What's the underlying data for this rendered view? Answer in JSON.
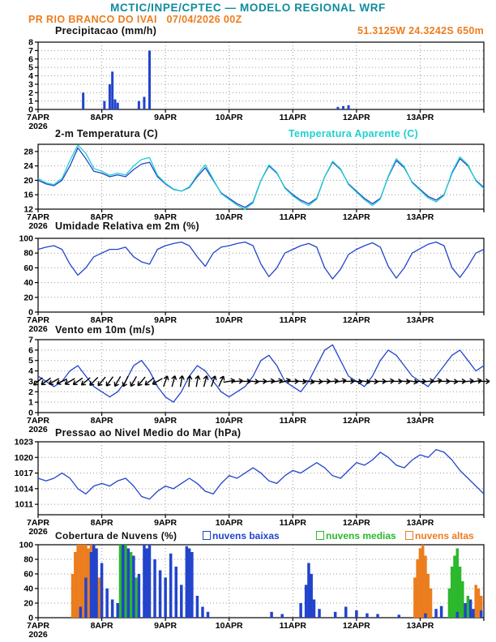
{
  "header": {
    "title": "MCTIC/INPE/CPTEC — MODELO REGIONAL WRF",
    "subtitle": "PR RIO BRANCO DO IVAI   07/04/2026 00Z",
    "location": "51.3125W 24.3242S 650m"
  },
  "colors": {
    "header_teal": "#0e8c9e",
    "accent_orange": "#ec7d1e",
    "line_blue": "#2244cc",
    "line_cyan": "#20cfcf",
    "bar_green": "#2cb82c",
    "axis_black": "#000000",
    "grid_gray": "#999999"
  },
  "x_axis": {
    "day_labels": [
      "7APR",
      "8APR",
      "9APR",
      "10APR",
      "11APR",
      "12APR",
      "13APR"
    ],
    "year_label": "2026",
    "total_hours": 168,
    "step_hours": 3
  },
  "chart_data": [
    {
      "id": "precip",
      "type": "bar",
      "title": "Precipitacao (mm/h)",
      "ylim": [
        0,
        8
      ],
      "yticks": [
        0,
        1,
        2,
        3,
        4,
        5,
        6,
        7,
        8
      ],
      "color": "#2244cc",
      "points": [
        [
          17,
          2.0
        ],
        [
          25,
          1.0
        ],
        [
          27,
          3.0
        ],
        [
          28,
          4.5
        ],
        [
          29,
          1.2
        ],
        [
          30,
          0.8
        ],
        [
          38,
          1.0
        ],
        [
          40,
          1.5
        ],
        [
          42,
          7.0
        ],
        [
          113,
          0.3
        ],
        [
          115,
          0.4
        ],
        [
          117,
          0.5
        ]
      ]
    },
    {
      "id": "temp",
      "type": "line",
      "title": "2-m Temperatura (C)",
      "secondary_title": "Temperatura Aparente (C)",
      "ylim": [
        12,
        30
      ],
      "yticks": [
        12,
        16,
        20,
        24,
        28
      ],
      "series": [
        {
          "name": "2-m Temperatura (C)",
          "color": "#2244cc",
          "values": [
            20,
            19,
            18.5,
            20,
            24,
            29,
            26,
            22.5,
            22,
            21,
            21.5,
            21,
            23,
            24.5,
            25,
            21,
            19,
            17.5,
            17,
            18,
            21,
            23.5,
            20,
            16.5,
            15,
            13.5,
            12.5,
            14,
            20,
            24,
            22,
            18,
            16,
            14.5,
            13.5,
            15,
            21,
            25,
            23,
            19,
            17,
            15,
            13.5,
            15,
            21,
            25.5,
            23.5,
            19.5,
            17.5,
            15.5,
            14.5,
            16,
            22,
            26,
            24,
            20,
            18
          ]
        },
        {
          "name": "Temperatura Aparente (C)",
          "color": "#20cfcf",
          "values": [
            20.5,
            19.3,
            18.8,
            20.5,
            25.5,
            29.8,
            27.5,
            23.3,
            22.5,
            21.4,
            22,
            21.5,
            24,
            25.8,
            26.3,
            21.4,
            19.2,
            17.6,
            17,
            18.2,
            21.5,
            24.3,
            20.3,
            16.3,
            14.7,
            13.1,
            12,
            13.7,
            20,
            24.3,
            22.2,
            17.8,
            15.7,
            14.1,
            13,
            14.8,
            21,
            25.3,
            23.2,
            18.8,
            16.7,
            14.6,
            13,
            14.8,
            21.2,
            26,
            23.8,
            19.3,
            17.2,
            15.1,
            14,
            15.8,
            22.3,
            26.5,
            24.3,
            19.8,
            17.7
          ]
        }
      ]
    },
    {
      "id": "rh",
      "type": "line",
      "title": "Umidade Relativa em 2m (%)",
      "ylim": [
        0,
        100
      ],
      "yticks": [
        0,
        20,
        40,
        60,
        80,
        100
      ],
      "series": [
        {
          "name": "Umidade Relativa",
          "color": "#2244cc",
          "values": [
            85,
            88,
            90,
            85,
            65,
            50,
            60,
            75,
            80,
            85,
            85,
            88,
            75,
            68,
            65,
            85,
            90,
            93,
            95,
            90,
            75,
            62,
            80,
            88,
            90,
            93,
            95,
            90,
            65,
            48,
            60,
            80,
            85,
            90,
            93,
            88,
            60,
            45,
            58,
            78,
            85,
            90,
            94,
            88,
            62,
            46,
            60,
            80,
            86,
            92,
            95,
            90,
            60,
            47,
            62,
            80,
            85
          ]
        }
      ]
    },
    {
      "id": "wind",
      "type": "line",
      "title": "Vento em 10m (m/s)",
      "ylim": [
        0,
        7
      ],
      "yticks": [
        0,
        1,
        2,
        3,
        4,
        5,
        6,
        7
      ],
      "series": [
        {
          "name": "Vento",
          "color": "#2244cc",
          "values": [
            3.5,
            3,
            2.5,
            3,
            4,
            4.5,
            3.5,
            2.5,
            2,
            1.5,
            2,
            3,
            4.5,
            5,
            4,
            2.5,
            1.5,
            1,
            2,
            3.5,
            4.5,
            4,
            3,
            2,
            1.5,
            2,
            2.5,
            3.5,
            5,
            5.5,
            4.5,
            3,
            2.5,
            2,
            3,
            4.5,
            6,
            6.5,
            5,
            3.5,
            3,
            2.5,
            3.5,
            5,
            6,
            5.5,
            4.5,
            3.5,
            3,
            2.5,
            3.5,
            4.5,
            5.5,
            6,
            5,
            4,
            4.5
          ]
        }
      ],
      "barbs": {
        "step_hours": 3,
        "level": 3,
        "color": "#000000",
        "angles_deg": [
          140,
          145,
          150,
          155,
          150,
          145,
          140,
          135,
          130,
          125,
          120,
          115,
          120,
          130,
          140,
          150,
          290,
          285,
          280,
          275,
          280,
          285,
          290,
          295,
          350,
          355,
          0,
          5,
          0,
          355,
          350,
          345,
          0,
          5,
          10,
          5,
          0,
          355,
          350,
          0,
          5,
          10,
          5,
          0,
          355,
          0,
          5,
          10,
          0,
          355,
          350,
          0,
          5,
          0,
          355,
          350,
          0
        ]
      }
    },
    {
      "id": "pres",
      "type": "line",
      "title": "Pressao ao Nivel Medio do Mar (hPa)",
      "ylim": [
        1009,
        1023
      ],
      "yticks": [
        1011,
        1014,
        1017,
        1020,
        1023
      ],
      "series": [
        {
          "name": "Pressao",
          "color": "#2244cc",
          "values": [
            1016,
            1015.5,
            1016,
            1017,
            1016,
            1014,
            1013,
            1014.5,
            1015,
            1014.5,
            1015.5,
            1016,
            1014.5,
            1012.5,
            1012,
            1013.5,
            1014.5,
            1014,
            1015,
            1016,
            1015,
            1013.5,
            1013,
            1015,
            1016.5,
            1016,
            1017,
            1018,
            1017,
            1015.5,
            1015,
            1016.5,
            1017.5,
            1017,
            1018,
            1019,
            1018,
            1016.5,
            1016,
            1017.5,
            1019,
            1018.5,
            1019.5,
            1021,
            1020,
            1018.5,
            1018,
            1019.5,
            1020.5,
            1020,
            1021.5,
            1021,
            1019.5,
            1017.5,
            1016,
            1014.5,
            1013
          ]
        }
      ]
    },
    {
      "id": "clouds",
      "type": "bar-multi",
      "title": "Cobertura de Nuvens (%)",
      "ylim": [
        0,
        100
      ],
      "yticks": [
        0,
        20,
        40,
        60,
        80,
        100
      ],
      "legend": [
        {
          "label": "nuvens baixas",
          "color": "#2244cc"
        },
        {
          "label": "nuvens medias",
          "color": "#2cb82c"
        },
        {
          "label": "nuvens altas",
          "color": "#ec7d1e"
        }
      ],
      "series": [
        {
          "name": "nuvens altas",
          "color": "#ec7d1e",
          "points": [
            [
              13,
              60
            ],
            [
              14,
              90
            ],
            [
              15,
              100
            ],
            [
              16,
              100
            ],
            [
              17,
              100
            ],
            [
              18,
              100
            ],
            [
              19,
              95
            ],
            [
              20,
              100
            ],
            [
              21,
              90
            ],
            [
              22,
              80
            ],
            [
              23,
              55
            ],
            [
              24,
              40
            ],
            [
              142,
              55
            ],
            [
              143,
              80
            ],
            [
              144,
              95
            ],
            [
              145,
              100
            ],
            [
              146,
              85
            ],
            [
              147,
              60
            ],
            [
              148,
              40
            ],
            [
              165,
              45
            ],
            [
              166,
              40
            ],
            [
              167,
              30
            ]
          ]
        },
        {
          "name": "nuvens medias",
          "color": "#2cb82c",
          "points": [
            [
              31,
              100
            ],
            [
              33,
              100
            ],
            [
              34,
              95
            ],
            [
              35,
              90
            ],
            [
              37,
              55
            ],
            [
              155,
              40
            ],
            [
              156,
              70
            ],
            [
              157,
              85
            ],
            [
              158,
              95
            ],
            [
              159,
              70
            ],
            [
              160,
              50
            ],
            [
              162,
              30
            ]
          ]
        },
        {
          "name": "nuvens baixas",
          "color": "#2244cc",
          "points": [
            [
              16,
              15
            ],
            [
              18,
              55
            ],
            [
              20,
              90
            ],
            [
              21,
              100
            ],
            [
              22,
              95
            ],
            [
              24,
              75
            ],
            [
              26,
              40
            ],
            [
              28,
              25
            ],
            [
              30,
              20
            ],
            [
              32,
              100
            ],
            [
              34,
              95
            ],
            [
              36,
              85
            ],
            [
              38,
              60
            ],
            [
              40,
              100
            ],
            [
              41,
              95
            ],
            [
              42,
              100
            ],
            [
              44,
              80
            ],
            [
              46,
              65
            ],
            [
              48,
              55
            ],
            [
              50,
              88
            ],
            [
              52,
              70
            ],
            [
              54,
              45
            ],
            [
              56,
              98
            ],
            [
              57,
              95
            ],
            [
              58,
              90
            ],
            [
              60,
              30
            ],
            [
              62,
              15
            ],
            [
              64,
              8
            ],
            [
              88,
              8
            ],
            [
              92,
              5
            ],
            [
              99,
              20
            ],
            [
              101,
              45
            ],
            [
              102,
              75
            ],
            [
              103,
              60
            ],
            [
              104,
              25
            ],
            [
              106,
              12
            ],
            [
              112,
              8
            ],
            [
              116,
              15
            ],
            [
              120,
              10
            ],
            [
              124,
              6
            ],
            [
              128,
              5
            ],
            [
              136,
              4
            ],
            [
              146,
              6
            ],
            [
              150,
              12
            ],
            [
              152,
              16
            ],
            [
              158,
              8
            ],
            [
              161,
              20
            ],
            [
              163,
              25
            ],
            [
              164,
              12
            ],
            [
              167,
              10
            ]
          ]
        }
      ]
    }
  ]
}
